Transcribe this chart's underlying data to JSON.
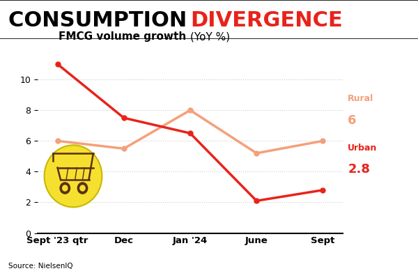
{
  "title_black": "CONSUMPTION ",
  "title_red": "DIVERGENCE",
  "subtitle_bold": "FMCG volume growth ",
  "subtitle_normal": "(YoY %)",
  "x_labels": [
    "Sept '23 qtr",
    "Dec",
    "Jan '24",
    "June",
    "Sept"
  ],
  "rural_values": [
    6.0,
    5.5,
    8.0,
    5.2,
    6.0
  ],
  "urban_values": [
    11.0,
    7.5,
    6.5,
    2.1,
    2.8
  ],
  "rural_color": "#F4A07A",
  "urban_color": "#E8231A",
  "ylim": [
    0,
    12
  ],
  "yticks": [
    0,
    2,
    4,
    6,
    8,
    10
  ],
  "source": "Source: NielsenIQ",
  "rural_label": "Rural",
  "rural_end_value": "6",
  "urban_label": "Urban",
  "urban_end_value": "2.8",
  "grid_color": "#CCCCCC",
  "title_fontsize": 22,
  "subtitle_fontsize": 11
}
